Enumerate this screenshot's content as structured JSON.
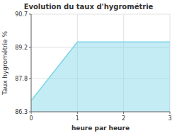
{
  "chart_data": {
    "type": "area",
    "title": "Evolution du taux d'hygrométrie",
    "xlabel": "heure par heure",
    "ylabel": "Taux hygrométrie %",
    "x": [
      0,
      1,
      3
    ],
    "values": [
      86.8,
      89.45,
      89.45
    ],
    "color": "#7dd4e8",
    "xlim": [
      0,
      3
    ],
    "ylim": [
      86.3,
      90.7
    ],
    "xticks": [
      0,
      1,
      2,
      3
    ],
    "yticks": [
      86.3,
      87.8,
      89.2,
      90.7
    ],
    "grid": true
  }
}
